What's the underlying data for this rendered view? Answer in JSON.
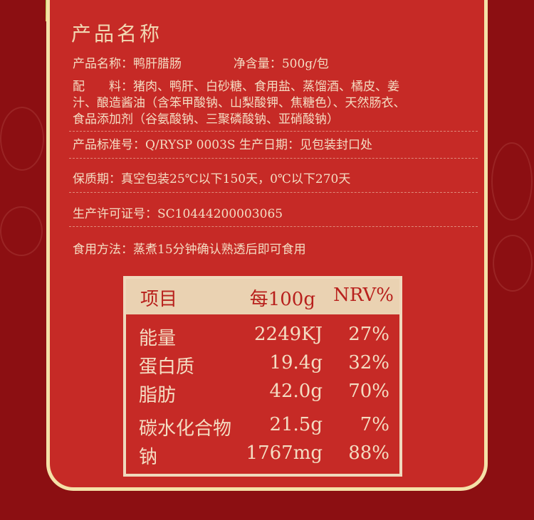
{
  "title": "产品名称",
  "info": {
    "name_label": "产品名称：",
    "name_value": "鸭肝腊肠",
    "net_label": "净含量：",
    "net_value": "500g/包",
    "ingredients_line1": "配　　料：猪肉、鸭肝、白砂糖、食用盐、蒸馏酒、橘皮、姜",
    "ingredients_line2": "汁、酿造酱油（含笨甲酸钠、山梨酸钾、焦糖色）、天然肠衣、",
    "ingredients_line3": "食品添加剂（谷氨酸钠、三聚磷酸钠、亚硝酸钠）",
    "standard": "产品标准号：Q/RYSP 0003S  生产日期：见包装封口处",
    "shelf_life": "保质期：真空包装25℃以下150天，0℃以下270天",
    "license": "生产许可证号：SC10444200003065",
    "usage": "食用方法：蒸煮15分钟确认熟透后即可食用"
  },
  "nutrition": {
    "headers": [
      "项目",
      "每100g",
      "NRV%"
    ],
    "rows": [
      [
        "能量",
        "2249KJ",
        "27%"
      ],
      [
        "蛋白质",
        "19.4g",
        "32%"
      ],
      [
        "脂肪",
        "42.0g",
        "70%"
      ],
      [
        "碳水化合物",
        "21.5g",
        "7%"
      ],
      [
        "钠",
        "1767mg",
        "88%"
      ]
    ]
  },
  "colors": {
    "background": "#8c0f12",
    "card": "#c62a26",
    "border": "#f5e1a8",
    "text": "#f4dcc2"
  }
}
